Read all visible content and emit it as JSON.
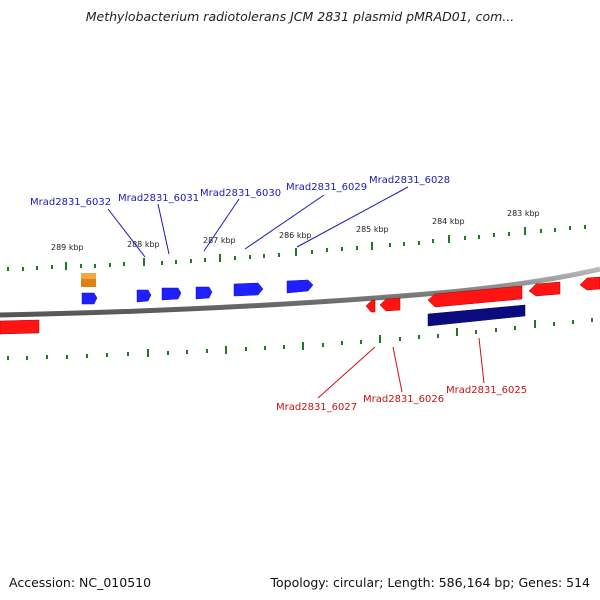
{
  "title": "Methylobacterium radiotolerans JCM 2831 plasmid pMRAD01, com...",
  "footer": {
    "accession": "Accession: NC_010510",
    "summary": "Topology: circular; Length: 586,164 bp; Genes: 514"
  },
  "ruler": {
    "ticks": [
      "289 kbp",
      "288 kbp",
      "287 kbp",
      "286 kbp",
      "285 kbp",
      "284 kbp",
      "283 kbp"
    ]
  },
  "genes": {
    "forward": [
      "Mrad2831_6032",
      "Mrad2831_6031",
      "Mrad2831_6030",
      "Mrad2831_6029",
      "Mrad2831_6028"
    ],
    "reverse": [
      "Mrad2831_6027",
      "Mrad2831_6026",
      "Mrad2831_6025"
    ]
  },
  "colors": {
    "forward_gene": "#1f1fff",
    "reverse_gene": "#ff1414",
    "highlight_gene": "#0b0b80",
    "orange_feature": "#f08c14",
    "backbone": "#808080",
    "tick": "#1e7a1e",
    "forward_label": "#1a1ab8",
    "reverse_label": "#cc1111"
  }
}
